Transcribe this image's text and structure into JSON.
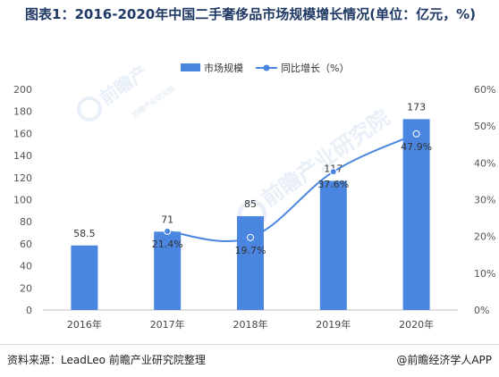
{
  "title": "图表1：2016-2020年中国二手奢侈品市场规模增长情况(单位：亿元，%)",
  "footer": {
    "source": "资料来源：LeadLeo 前瞻产业研究院整理",
    "credit": "@前瞻经济学人APP"
  },
  "watermark": {
    "text": "前瞻产业研究院",
    "subtext": "前瞻产业研究院",
    "corner": "前瞻产"
  },
  "colors": {
    "bar": "#4a86e0",
    "line": "#4a86e0",
    "title": "#1f3864",
    "axis_text": "#555555",
    "grid": "#e6e6e6"
  },
  "chart_data": {
    "type": "bar",
    "categories": [
      "2016年",
      "2017年",
      "2018年",
      "2019年",
      "2020年"
    ],
    "series": [
      {
        "name": "市场规模",
        "type": "bar",
        "axis": "left",
        "values": [
          58.5,
          71,
          85,
          117,
          173
        ],
        "labels": [
          "58.5",
          "71",
          "85",
          "117",
          "173"
        ]
      },
      {
        "name": "同比增长（%）",
        "type": "line",
        "axis": "right",
        "values": [
          null,
          21.4,
          19.7,
          37.6,
          47.9
        ],
        "labels": [
          "",
          "21.4%",
          "19.7%",
          "37.6%",
          "47.9%"
        ]
      }
    ],
    "left_axis": {
      "ylim": [
        0,
        200
      ],
      "ticks": [
        "0",
        "20",
        "40",
        "60",
        "80",
        "100",
        "120",
        "140",
        "160",
        "180",
        "200"
      ]
    },
    "right_axis": {
      "ylim": [
        0,
        60
      ],
      "ticks": [
        "0%",
        "10%",
        "20%",
        "30%",
        "40%",
        "50%",
        "60%"
      ]
    },
    "legend_position": "top",
    "grid": false
  }
}
